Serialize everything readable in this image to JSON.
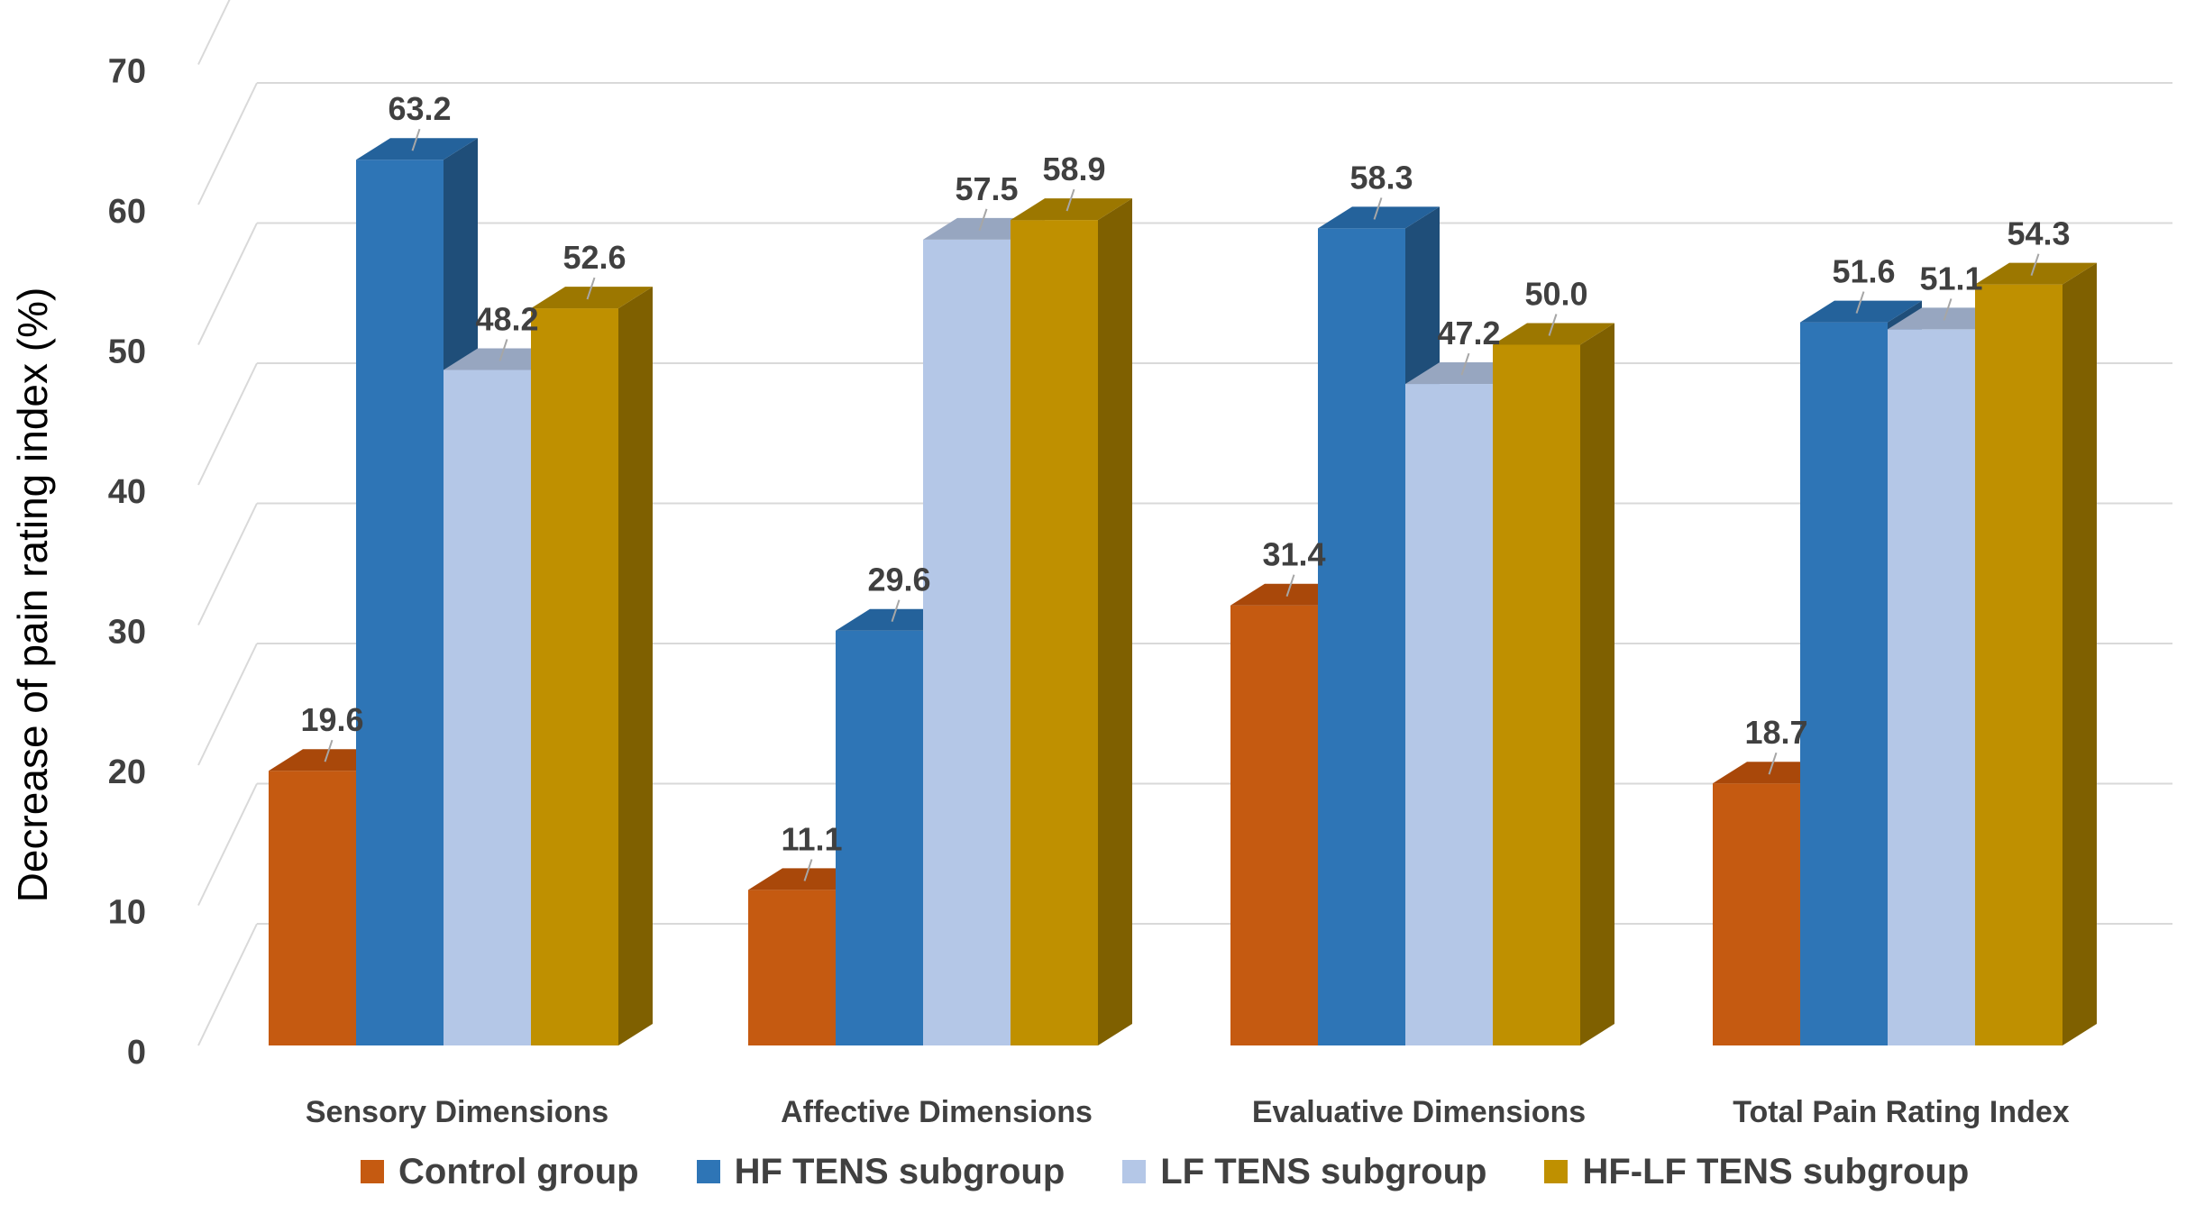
{
  "chart_data": {
    "type": "bar",
    "title": "",
    "xlabel": "",
    "ylabel": "Decrease of pain rating index (%)",
    "ylim": [
      0,
      70
    ],
    "yticks": [
      0,
      10,
      20,
      30,
      40,
      50,
      60,
      70
    ],
    "grid": true,
    "legend_position": "bottom",
    "categories": [
      "Sensory Dimensions",
      "Affective Dimensions",
      "Evaluative Dimensions",
      "Total Pain Rating Index"
    ],
    "series": [
      {
        "name": "Control group",
        "values": [
          19.6,
          11.1,
          31.4,
          18.7
        ],
        "labels": [
          "19.6",
          "11.1",
          "31.4",
          "18.7"
        ],
        "color": "#C55A11",
        "top": "#A9480A",
        "side": "#8E3D0A"
      },
      {
        "name": "HF TENS subgroup",
        "values": [
          63.2,
          29.6,
          58.3,
          51.6
        ],
        "labels": [
          "63.2",
          "29.6",
          "58.3",
          "51.6"
        ],
        "color": "#2E75B6",
        "top": "#24629B",
        "side": "#1F4E79"
      },
      {
        "name": "LF TENS subgroup",
        "values": [
          48.2,
          57.5,
          47.2,
          51.1
        ],
        "labels": [
          "48.2",
          "57.5",
          "47.2",
          "51.1"
        ],
        "color": "#B4C7E7",
        "top": "#97A6C0",
        "side": "#8497B0"
      },
      {
        "name": "HF-LF TENS subgroup",
        "values": [
          52.6,
          58.9,
          50.0,
          54.3
        ],
        "labels": [
          "52.6",
          "58.9",
          "50.0",
          "54.3"
        ],
        "color": "#BF9000",
        "top": "#9C7700",
        "side": "#7F6000"
      }
    ]
  }
}
